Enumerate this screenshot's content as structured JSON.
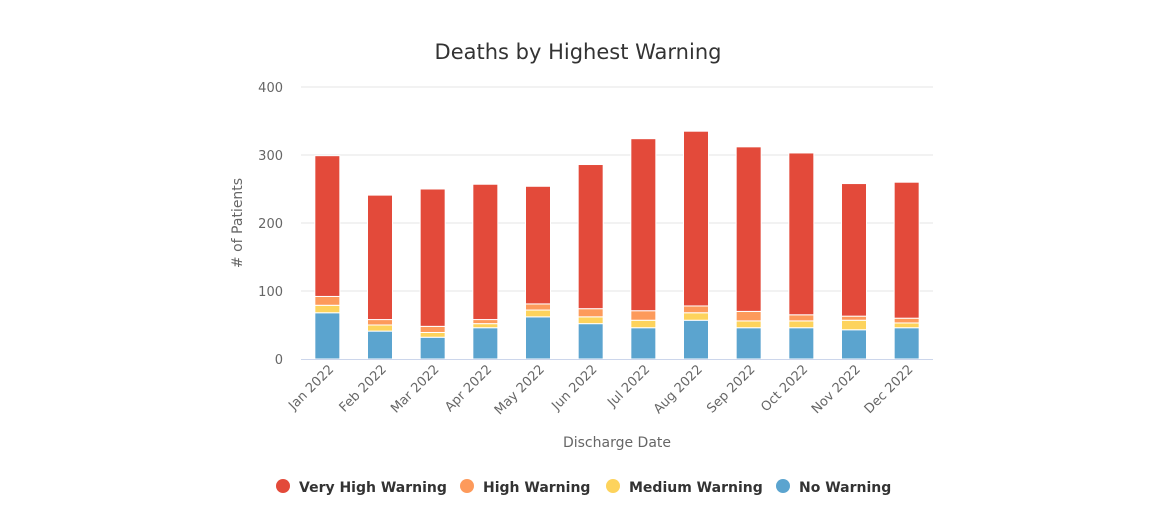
{
  "chart_data": {
    "type": "bar",
    "stacked": true,
    "title": "Deaths by Highest Warning",
    "xlabel": "Discharge Date",
    "ylabel": "# of Patients",
    "ylim": [
      0,
      400
    ],
    "yticks": [
      0,
      100,
      200,
      300,
      400
    ],
    "grid": true,
    "legend_position": "bottom",
    "categories": [
      "Jan 2022",
      "Feb 2022",
      "Mar 2022",
      "Apr 2022",
      "May 2022",
      "Jun 2022",
      "Jul 2022",
      "Aug 2022",
      "Sep 2022",
      "Oct 2022",
      "Nov 2022",
      "Dec 2022"
    ],
    "series": [
      {
        "name": "No Warning",
        "color": "#5ba4cf",
        "values": [
          68,
          41,
          32,
          46,
          62,
          52,
          46,
          57,
          46,
          46,
          43,
          46
        ]
      },
      {
        "name": "Medium Warning",
        "color": "#fdd35c",
        "values": [
          11,
          9,
          7,
          6,
          10,
          10,
          11,
          11,
          10,
          10,
          14,
          7
        ]
      },
      {
        "name": "High Warning",
        "color": "#fd9a5b",
        "values": [
          13,
          8,
          9,
          6,
          9,
          12,
          14,
          10,
          14,
          9,
          6,
          7
        ]
      },
      {
        "name": "Very High Warning",
        "color": "#e34a3a",
        "values": [
          207,
          183,
          202,
          199,
          173,
          212,
          253,
          257,
          242,
          238,
          195,
          200
        ]
      }
    ],
    "legend": [
      {
        "name": "Very High Warning",
        "color": "#e34a3a"
      },
      {
        "name": "High Warning",
        "color": "#fd9a5b"
      },
      {
        "name": "Medium Warning",
        "color": "#fdd35c"
      },
      {
        "name": "No Warning",
        "color": "#5ba4cf"
      }
    ]
  }
}
